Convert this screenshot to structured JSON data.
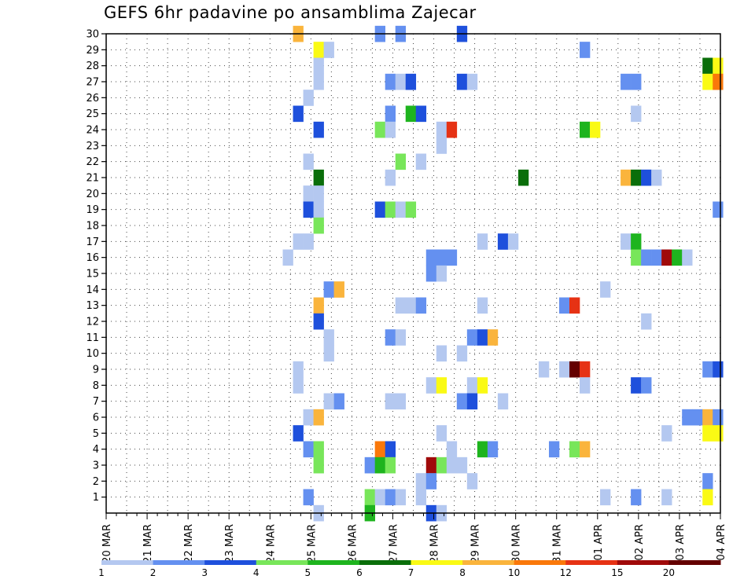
{
  "chart_data": {
    "type": "heatmap",
    "title": "GEFS 6hr padavine po ansamblima Zajecar",
    "xlabel": "",
    "ylabel": "",
    "x_ticks": [
      "20 MAR",
      "21 MAR",
      "22 MAR",
      "23 MAR",
      "24 MAR",
      "25 MAR",
      "26 MAR",
      "27 MAR",
      "28 MAR",
      "29 MAR",
      "30 MAR",
      "31 MAR",
      "01 APR",
      "02 APR",
      "03 APR",
      "04 APR"
    ],
    "y_ticks": [
      1,
      2,
      3,
      4,
      5,
      6,
      7,
      8,
      9,
      10,
      11,
      12,
      13,
      14,
      15,
      16,
      17,
      18,
      19,
      20,
      21,
      22,
      23,
      24,
      25,
      26,
      27,
      28,
      29,
      30
    ],
    "time_steps_per_day": 4,
    "time_steps": 60,
    "ylim": [
      0,
      30
    ],
    "grid": true,
    "legend": {
      "placement": "bottom",
      "colors": [
        "#b4c8f0",
        "#6490f0",
        "#1e50dc",
        "#78e65a",
        "#1eb41e",
        "#0a6e0a",
        "#fafa14",
        "#fab43c",
        "#fa780a",
        "#e63214",
        "#a00a0a",
        "#640000"
      ],
      "labels": [
        "1",
        "2",
        "3",
        "4",
        "5",
        "6",
        "7",
        "8",
        "10",
        "12",
        "15",
        "20"
      ]
    },
    "cells": [
      {
        "t": 18.75,
        "m": 30,
        "c": 8
      },
      {
        "t": 26.75,
        "m": 30,
        "c": 2
      },
      {
        "t": 28.75,
        "m": 30,
        "c": 2
      },
      {
        "t": 34.75,
        "m": 30,
        "c": 3
      },
      {
        "t": 20.75,
        "m": 29,
        "c": 7
      },
      {
        "t": 21.75,
        "m": 29,
        "c": 1
      },
      {
        "t": 46.75,
        "m": 29,
        "c": 2
      },
      {
        "t": 20.75,
        "m": 28,
        "c": 1
      },
      {
        "t": 58.75,
        "m": 28,
        "c": 6
      },
      {
        "t": 59.75,
        "m": 28,
        "c": 7
      },
      {
        "t": 20.75,
        "m": 27,
        "c": 1
      },
      {
        "t": 27.75,
        "m": 27,
        "c": 2
      },
      {
        "t": 28.75,
        "m": 27,
        "c": 1
      },
      {
        "t": 29.75,
        "m": 27,
        "c": 3
      },
      {
        "t": 34.75,
        "m": 27,
        "c": 3
      },
      {
        "t": 35.75,
        "m": 27,
        "c": 1
      },
      {
        "t": 50.75,
        "m": 27,
        "c": 2
      },
      {
        "t": 51.75,
        "m": 27,
        "c": 2
      },
      {
        "t": 58.75,
        "m": 27,
        "c": 7
      },
      {
        "t": 59.75,
        "m": 27,
        "c": 9
      },
      {
        "t": 19.75,
        "m": 26,
        "c": 1
      },
      {
        "t": 18.75,
        "m": 25,
        "c": 3
      },
      {
        "t": 27.75,
        "m": 25,
        "c": 2
      },
      {
        "t": 29.75,
        "m": 25,
        "c": 5
      },
      {
        "t": 30.75,
        "m": 25,
        "c": 3
      },
      {
        "t": 51.75,
        "m": 25,
        "c": 1
      },
      {
        "t": 20.75,
        "m": 24,
        "c": 3
      },
      {
        "t": 26.75,
        "m": 24,
        "c": 4
      },
      {
        "t": 27.75,
        "m": 24,
        "c": 1
      },
      {
        "t": 32.75,
        "m": 24,
        "c": 1
      },
      {
        "t": 33.75,
        "m": 24,
        "c": 10
      },
      {
        "t": 46.75,
        "m": 24,
        "c": 5
      },
      {
        "t": 47.75,
        "m": 24,
        "c": 7
      },
      {
        "t": 32.75,
        "m": 23,
        "c": 1
      },
      {
        "t": 19.75,
        "m": 22,
        "c": 1
      },
      {
        "t": 28.75,
        "m": 22,
        "c": 4
      },
      {
        "t": 30.75,
        "m": 22,
        "c": 1
      },
      {
        "t": 20.75,
        "m": 21,
        "c": 6
      },
      {
        "t": 27.75,
        "m": 21,
        "c": 1
      },
      {
        "t": 40.75,
        "m": 21,
        "c": 6
      },
      {
        "t": 50.75,
        "m": 21,
        "c": 8
      },
      {
        "t": 51.75,
        "m": 21,
        "c": 6
      },
      {
        "t": 52.75,
        "m": 21,
        "c": 3
      },
      {
        "t": 53.75,
        "m": 21,
        "c": 1
      },
      {
        "t": 19.75,
        "m": 20,
        "c": 1
      },
      {
        "t": 20.75,
        "m": 20,
        "c": 1
      },
      {
        "t": 19.75,
        "m": 19,
        "c": 3
      },
      {
        "t": 20.75,
        "m": 19,
        "c": 1
      },
      {
        "t": 26.75,
        "m": 19,
        "c": 3
      },
      {
        "t": 27.75,
        "m": 19,
        "c": 4
      },
      {
        "t": 28.75,
        "m": 19,
        "c": 1
      },
      {
        "t": 29.75,
        "m": 19,
        "c": 4
      },
      {
        "t": 59.75,
        "m": 19,
        "c": 2
      },
      {
        "t": 20.75,
        "m": 18,
        "c": 4
      },
      {
        "t": 18.75,
        "m": 17,
        "c": 1
      },
      {
        "t": 19.75,
        "m": 17,
        "c": 1
      },
      {
        "t": 36.75,
        "m": 17,
        "c": 1
      },
      {
        "t": 38.75,
        "m": 17,
        "c": 3
      },
      {
        "t": 39.75,
        "m": 17,
        "c": 1
      },
      {
        "t": 50.75,
        "m": 17,
        "c": 1
      },
      {
        "t": 51.75,
        "m": 17,
        "c": 5
      },
      {
        "t": 17.75,
        "m": 16,
        "c": 1
      },
      {
        "t": 31.75,
        "m": 16,
        "c": 2
      },
      {
        "t": 32.75,
        "m": 16,
        "c": 2
      },
      {
        "t": 33.75,
        "m": 16,
        "c": 2
      },
      {
        "t": 51.75,
        "m": 16,
        "c": 4
      },
      {
        "t": 52.75,
        "m": 16,
        "c": 2
      },
      {
        "t": 53.75,
        "m": 16,
        "c": 2
      },
      {
        "t": 54.75,
        "m": 16,
        "c": 11
      },
      {
        "t": 55.75,
        "m": 16,
        "c": 5
      },
      {
        "t": 56.75,
        "m": 16,
        "c": 1
      },
      {
        "t": 31.75,
        "m": 15,
        "c": 2
      },
      {
        "t": 32.75,
        "m": 15,
        "c": 1
      },
      {
        "t": 21.75,
        "m": 14,
        "c": 2
      },
      {
        "t": 22.75,
        "m": 14,
        "c": 8
      },
      {
        "t": 48.75,
        "m": 14,
        "c": 1
      },
      {
        "t": 20.75,
        "m": 13,
        "c": 8
      },
      {
        "t": 28.75,
        "m": 13,
        "c": 1
      },
      {
        "t": 29.75,
        "m": 13,
        "c": 1
      },
      {
        "t": 30.75,
        "m": 13,
        "c": 2
      },
      {
        "t": 36.75,
        "m": 13,
        "c": 1
      },
      {
        "t": 44.75,
        "m": 13,
        "c": 2
      },
      {
        "t": 45.75,
        "m": 13,
        "c": 10
      },
      {
        "t": 20.75,
        "m": 12,
        "c": 3
      },
      {
        "t": 52.75,
        "m": 12,
        "c": 1
      },
      {
        "t": 21.75,
        "m": 11,
        "c": 1
      },
      {
        "t": 27.75,
        "m": 11,
        "c": 2
      },
      {
        "t": 28.75,
        "m": 11,
        "c": 1
      },
      {
        "t": 35.75,
        "m": 11,
        "c": 2
      },
      {
        "t": 36.75,
        "m": 11,
        "c": 3
      },
      {
        "t": 37.75,
        "m": 11,
        "c": 8
      },
      {
        "t": 21.75,
        "m": 10,
        "c": 1
      },
      {
        "t": 32.75,
        "m": 10,
        "c": 1
      },
      {
        "t": 34.75,
        "m": 10,
        "c": 1
      },
      {
        "t": 18.75,
        "m": 9,
        "c": 1
      },
      {
        "t": 42.75,
        "m": 9,
        "c": 1
      },
      {
        "t": 44.75,
        "m": 9,
        "c": 1
      },
      {
        "t": 45.75,
        "m": 9,
        "c": 12
      },
      {
        "t": 46.75,
        "m": 9,
        "c": 10
      },
      {
        "t": 58.75,
        "m": 9,
        "c": 2
      },
      {
        "t": 59.75,
        "m": 9,
        "c": 3
      },
      {
        "t": 18.75,
        "m": 8,
        "c": 1
      },
      {
        "t": 31.75,
        "m": 8,
        "c": 1
      },
      {
        "t": 32.75,
        "m": 8,
        "c": 7
      },
      {
        "t": 35.75,
        "m": 8,
        "c": 1
      },
      {
        "t": 36.75,
        "m": 8,
        "c": 7
      },
      {
        "t": 46.75,
        "m": 8,
        "c": 1
      },
      {
        "t": 51.75,
        "m": 8,
        "c": 3
      },
      {
        "t": 52.75,
        "m": 8,
        "c": 2
      },
      {
        "t": 21.75,
        "m": 7,
        "c": 1
      },
      {
        "t": 22.75,
        "m": 7,
        "c": 2
      },
      {
        "t": 27.75,
        "m": 7,
        "c": 1
      },
      {
        "t": 28.75,
        "m": 7,
        "c": 1
      },
      {
        "t": 34.75,
        "m": 7,
        "c": 2
      },
      {
        "t": 35.75,
        "m": 7,
        "c": 3
      },
      {
        "t": 38.75,
        "m": 7,
        "c": 1
      },
      {
        "t": 19.75,
        "m": 6,
        "c": 1
      },
      {
        "t": 20.75,
        "m": 6,
        "c": 8
      },
      {
        "t": 56.75,
        "m": 6,
        "c": 2
      },
      {
        "t": 57.75,
        "m": 6,
        "c": 2
      },
      {
        "t": 58.75,
        "m": 6,
        "c": 8
      },
      {
        "t": 59.75,
        "m": 6,
        "c": 2
      },
      {
        "t": 18.75,
        "m": 5,
        "c": 3
      },
      {
        "t": 32.75,
        "m": 5,
        "c": 1
      },
      {
        "t": 54.75,
        "m": 5,
        "c": 1
      },
      {
        "t": 58.75,
        "m": 5,
        "c": 7
      },
      {
        "t": 59.75,
        "m": 5,
        "c": 7
      },
      {
        "t": 19.75,
        "m": 4,
        "c": 2
      },
      {
        "t": 20.75,
        "m": 4,
        "c": 4
      },
      {
        "t": 26.75,
        "m": 4,
        "c": 9
      },
      {
        "t": 27.75,
        "m": 4,
        "c": 3
      },
      {
        "t": 33.75,
        "m": 4,
        "c": 1
      },
      {
        "t": 36.75,
        "m": 4,
        "c": 5
      },
      {
        "t": 37.75,
        "m": 4,
        "c": 2
      },
      {
        "t": 43.75,
        "m": 4,
        "c": 2
      },
      {
        "t": 45.75,
        "m": 4,
        "c": 4
      },
      {
        "t": 46.75,
        "m": 4,
        "c": 8
      },
      {
        "t": 20.75,
        "m": 3,
        "c": 4
      },
      {
        "t": 25.75,
        "m": 3,
        "c": 2
      },
      {
        "t": 26.75,
        "m": 3,
        "c": 5
      },
      {
        "t": 27.75,
        "m": 3,
        "c": 4
      },
      {
        "t": 31.75,
        "m": 3,
        "c": 11
      },
      {
        "t": 32.75,
        "m": 3,
        "c": 4
      },
      {
        "t": 33.75,
        "m": 3,
        "c": 1
      },
      {
        "t": 34.75,
        "m": 3,
        "c": 1
      },
      {
        "t": 30.75,
        "m": 2,
        "c": 1
      },
      {
        "t": 31.75,
        "m": 2,
        "c": 2
      },
      {
        "t": 35.75,
        "m": 2,
        "c": 1
      },
      {
        "t": 58.75,
        "m": 2,
        "c": 2
      },
      {
        "t": 19.75,
        "m": 1,
        "c": 2
      },
      {
        "t": 25.75,
        "m": 1,
        "c": 4
      },
      {
        "t": 26.75,
        "m": 1,
        "c": 1
      },
      {
        "t": 27.75,
        "m": 1,
        "c": 2
      },
      {
        "t": 28.75,
        "m": 1,
        "c": 1
      },
      {
        "t": 30.75,
        "m": 1,
        "c": 1
      },
      {
        "t": 48.75,
        "m": 1,
        "c": 1
      },
      {
        "t": 51.75,
        "m": 1,
        "c": 2
      },
      {
        "t": 54.75,
        "m": 1,
        "c": 1
      },
      {
        "t": 58.75,
        "m": 1,
        "c": 7
      },
      {
        "t": 20.75,
        "m": 0,
        "c": 1
      },
      {
        "t": 25.75,
        "m": 0,
        "c": 5
      },
      {
        "t": 31.75,
        "m": 0,
        "c": 3
      },
      {
        "t": 32.75,
        "m": 0,
        "c": 1
      }
    ]
  }
}
